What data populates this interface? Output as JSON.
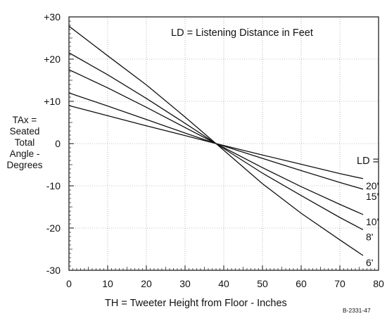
{
  "figure_id": "B-2331-47",
  "chart_data": {
    "type": "line",
    "annotation": "LD = Listening Distance in Feet",
    "legend_title": "LD =",
    "xlabel": "TH = Tweeter Height from Floor - Inches",
    "ylabel_lines": [
      "TAx =",
      "Seated",
      "Total",
      "Angle -",
      "Degrees"
    ],
    "xlim": [
      0,
      80
    ],
    "ylim": [
      -30,
      30
    ],
    "xticks": [
      0,
      10,
      20,
      30,
      40,
      50,
      60,
      70,
      80
    ],
    "yticks": [
      30,
      20,
      10,
      0,
      -10,
      -20,
      -30
    ],
    "ytick_labels": [
      "+30",
      "+20",
      "+10",
      "0",
      "-10",
      "-20",
      "-30"
    ],
    "grid": true,
    "series": [
      {
        "name": "20'",
        "x": [
          0,
          10,
          20,
          30,
          38,
          50,
          60,
          70,
          76
        ],
        "y": [
          9.0,
          6.6,
          4.2,
          1.9,
          0.0,
          -2.7,
          -4.9,
          -7.1,
          -8.3
        ]
      },
      {
        "name": "15'",
        "x": [
          0,
          10,
          20,
          30,
          38,
          50,
          60,
          70,
          76
        ],
        "y": [
          12.0,
          8.9,
          5.7,
          2.5,
          0.0,
          -3.5,
          -6.4,
          -9.2,
          -10.8
        ]
      },
      {
        "name": "10'",
        "x": [
          0,
          10,
          20,
          30,
          38,
          50,
          60,
          70,
          76
        ],
        "y": [
          17.5,
          13.2,
          8.6,
          3.8,
          0.0,
          -5.7,
          -10.2,
          -14.4,
          -16.8
        ]
      },
      {
        "name": "8'",
        "x": [
          0,
          10,
          20,
          30,
          38,
          50,
          60,
          70,
          76
        ],
        "y": [
          21.5,
          16.3,
          10.7,
          4.8,
          0.0,
          -7.0,
          -12.3,
          -17.5,
          -20.4
        ]
      },
      {
        "name": "6'",
        "x": [
          0,
          10,
          20,
          30,
          38,
          50,
          60,
          70,
          76
        ],
        "y": [
          27.8,
          20.8,
          13.9,
          6.3,
          0.0,
          -9.5,
          -16.5,
          -22.8,
          -26.5
        ]
      }
    ]
  }
}
